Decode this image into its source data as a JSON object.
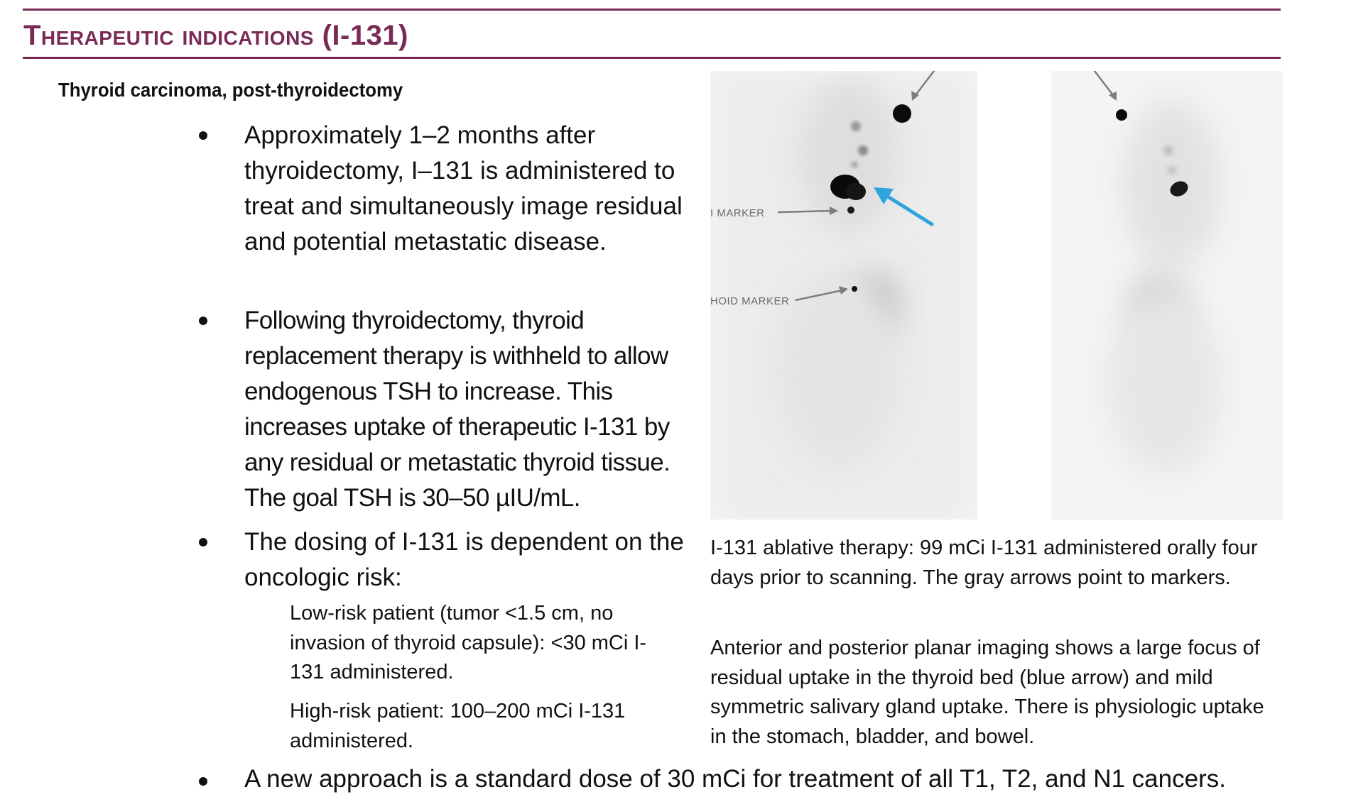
{
  "header": {
    "title": "Therapeutic indications (I-131)",
    "subtitle": "Thyroid carcinoma, post-thyroidectomy"
  },
  "bullets": [
    "Approximately 1–2 months after thyroidectomy, I–131 is administered to treat and simultaneously image residual and potential metastatic disease.",
    "Following thyroidectomy, thyroid replacement therapy is withheld to allow endogenous TSH to increase. This increases uptake of therapeutic I-131 by any residual or metastatic thyroid tissue. The goal TSH is 30–50 µIU/mL.",
    "The dosing of I-131 is dependent on the oncologic risk:",
    "A new approach is a standard dose of 30 mCi for treatment of all T1, T2, and N1 cancers."
  ],
  "sub_bullets": [
    "Low-risk patient (tumor <1.5 cm, no invasion of thyroid capsule): <30 mCi I-131 administered.",
    "High-risk patient: 100–200 mCi I-131 administered."
  ],
  "figure": {
    "marker_label_1": "I MARKER",
    "marker_label_2": "HOID MARKER",
    "caption_1": "I-131 ablative therapy: 99 mCi I-131 administered orally four days prior to scanning. The gray arrows point to markers.",
    "caption_2": "Anterior and posterior planar imaging shows a large focus of residual uptake in the thyroid bed (blue arrow) and mild symmetric salivary gland uptake. There is physiologic uptake in the stomach, bladder, and bowel."
  },
  "colors": {
    "accent": "#7a2b55",
    "blue_arrow": "#2fa3dd",
    "gray_arrow": "#7d7d7d"
  }
}
